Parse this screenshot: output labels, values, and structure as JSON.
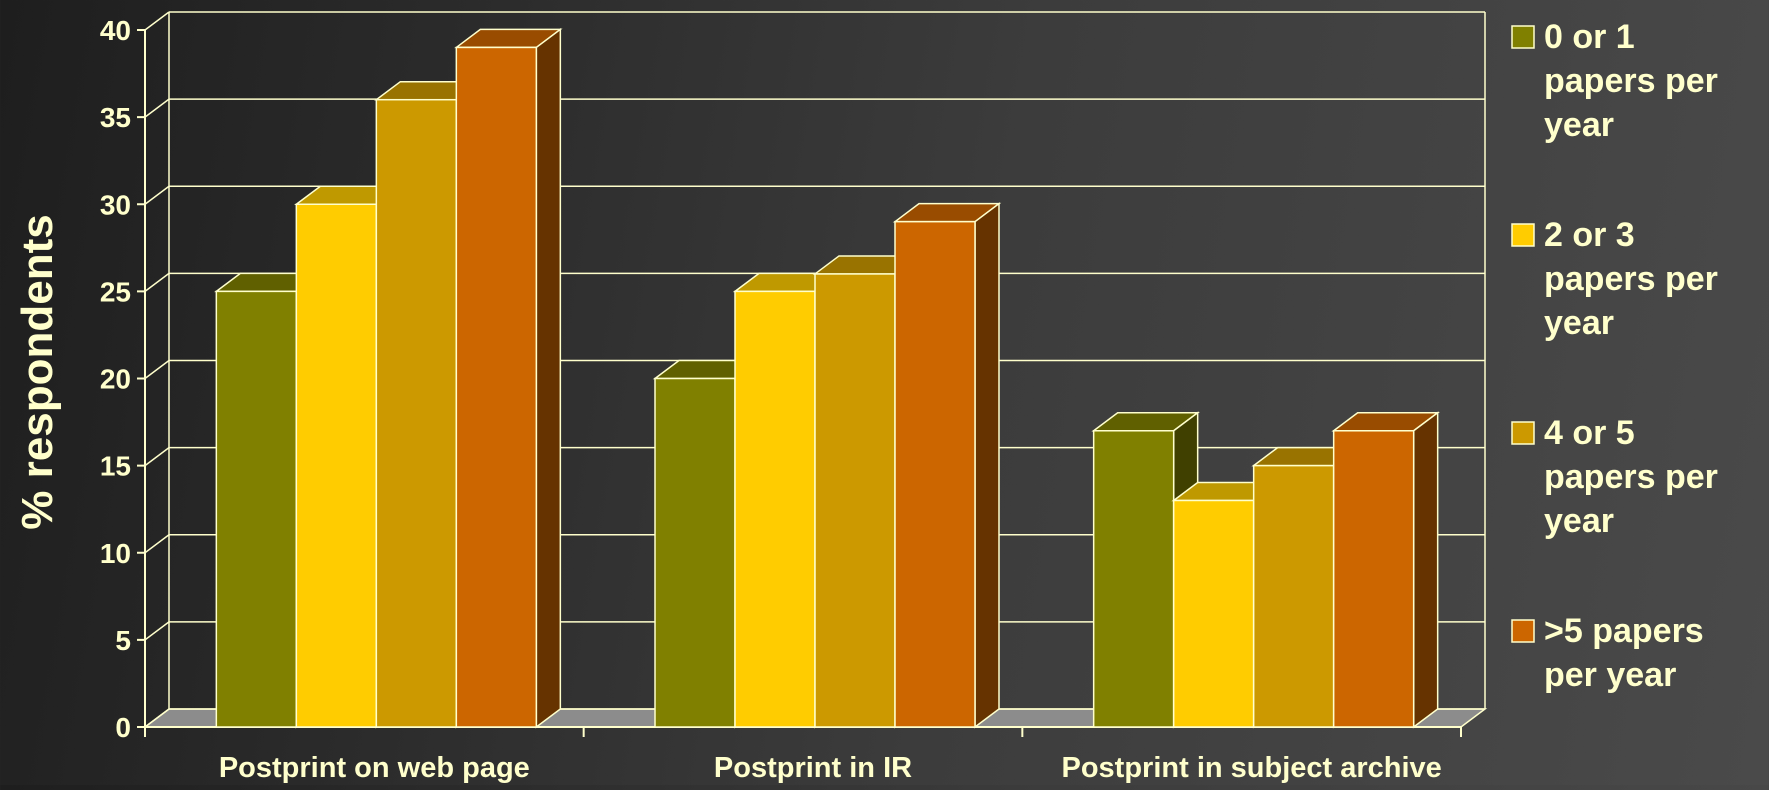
{
  "chart_data": {
    "type": "bar",
    "title": "",
    "xlabel": "",
    "ylabel": "% respondents",
    "ylim": [
      0,
      40
    ],
    "yticks": [
      0,
      5,
      10,
      15,
      20,
      25,
      30,
      35,
      40
    ],
    "grid": true,
    "legend_position": "right",
    "categories": [
      "Postprint on web page",
      "Postprint in IR",
      "Postprint in subject archive"
    ],
    "series": [
      {
        "name": "0 or 1 papers per year",
        "legend_lines": [
          "0 or 1",
          "papers per",
          "year"
        ],
        "values": [
          25,
          20,
          17
        ]
      },
      {
        "name": "2 or 3 papers per year",
        "legend_lines": [
          "2 or 3",
          "papers per",
          "year"
        ],
        "values": [
          30,
          25,
          13
        ]
      },
      {
        "name": "4 or 5 papers per year",
        "legend_lines": [
          "4 or 5",
          "papers per",
          "year"
        ],
        "values": [
          36,
          26,
          15
        ]
      },
      {
        "name": ">5 papers per year",
        "legend_lines": [
          ">5 papers",
          "per year"
        ],
        "values": [
          39,
          29,
          17
        ]
      }
    ],
    "colors": {
      "series": [
        "#808000",
        "#ffcc00",
        "#cc9900",
        "#cc6600"
      ],
      "series_top": [
        "#606000",
        "#bf9900",
        "#997300",
        "#994c00"
      ],
      "series_side": [
        "#404000",
        "#806600",
        "#664d00",
        "#663300"
      ],
      "text": "#ffffcc",
      "grid": "#ffffcc",
      "floor": "#8c8c8c"
    }
  }
}
